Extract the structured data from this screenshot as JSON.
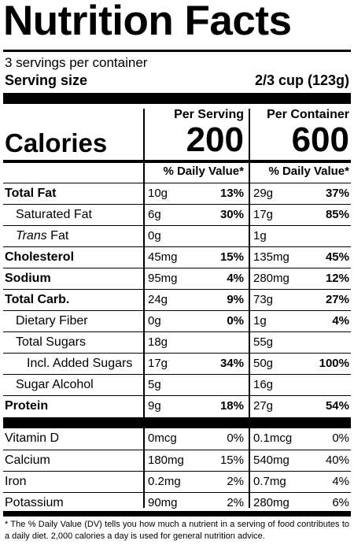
{
  "title": "Nutrition Facts",
  "servings_per_container": "3 servings per container",
  "serving_size_label": "Serving size",
  "serving_size_value": "2/3 cup (123g)",
  "per_serving_label": "Per Serving",
  "per_container_label": "Per Container",
  "calories_label": "Calories",
  "calories_per_serving": "200",
  "calories_per_container": "600",
  "dv_header": "% Daily Value*",
  "nutrients": [
    {
      "name": "Total Fat",
      "serving_amount": "10g",
      "serving_dv": "13%",
      "container_amount": "29g",
      "container_dv": "37%"
    },
    {
      "name": "Saturated Fat",
      "serving_amount": "6g",
      "serving_dv": "30%",
      "container_amount": "17g",
      "container_dv": "85%"
    },
    {
      "name_italic": "Trans",
      "name_rest": " Fat",
      "serving_amount": "0g",
      "serving_dv": "",
      "container_amount": "1g",
      "container_dv": ""
    },
    {
      "name": "Cholesterol",
      "serving_amount": "45mg",
      "serving_dv": "15%",
      "container_amount": "135mg",
      "container_dv": "45%"
    },
    {
      "name": "Sodium",
      "serving_amount": "95mg",
      "serving_dv": "4%",
      "container_amount": "280mg",
      "container_dv": "12%"
    },
    {
      "name": "Total Carb.",
      "serving_amount": "24g",
      "serving_dv": "9%",
      "container_amount": "73g",
      "container_dv": "27%"
    },
    {
      "name": "Dietary Fiber",
      "serving_amount": "0g",
      "serving_dv": "0%",
      "container_amount": "1g",
      "container_dv": "4%"
    },
    {
      "name": "Total Sugars",
      "serving_amount": "18g",
      "serving_dv": "",
      "container_amount": "55g",
      "container_dv": ""
    },
    {
      "name": "Incl. Added Sugars",
      "serving_amount": "17g",
      "serving_dv": "34%",
      "container_amount": "50g",
      "container_dv": "100%"
    },
    {
      "name": "Sugar Alcohol",
      "serving_amount": "5g",
      "serving_dv": "",
      "container_amount": "16g",
      "container_dv": ""
    },
    {
      "name": "Protein",
      "serving_amount": "9g",
      "serving_dv": "18%",
      "container_amount": "27g",
      "container_dv": "54%"
    }
  ],
  "vitamins": [
    {
      "name": "Vitamin D",
      "serving_amount": "0mcg",
      "serving_dv": "0%",
      "container_amount": "0.1mcg",
      "container_dv": "0%"
    },
    {
      "name": "Calcium",
      "serving_amount": "180mg",
      "serving_dv": "15%",
      "container_amount": "540mg",
      "container_dv": "40%"
    },
    {
      "name": "Iron",
      "serving_amount": "0.2mg",
      "serving_dv": "2%",
      "container_amount": "0.7mg",
      "container_dv": "4%"
    },
    {
      "name": "Potassium",
      "serving_amount": "90mg",
      "serving_dv": "2%",
      "container_amount": "280mg",
      "container_dv": "6%"
    }
  ],
  "footnote": "* The % Daily Value (DV) tells you how much a nutrient in a serving of food contributes to a daily diet. 2,000 calories a day is used for general nutrition advice."
}
